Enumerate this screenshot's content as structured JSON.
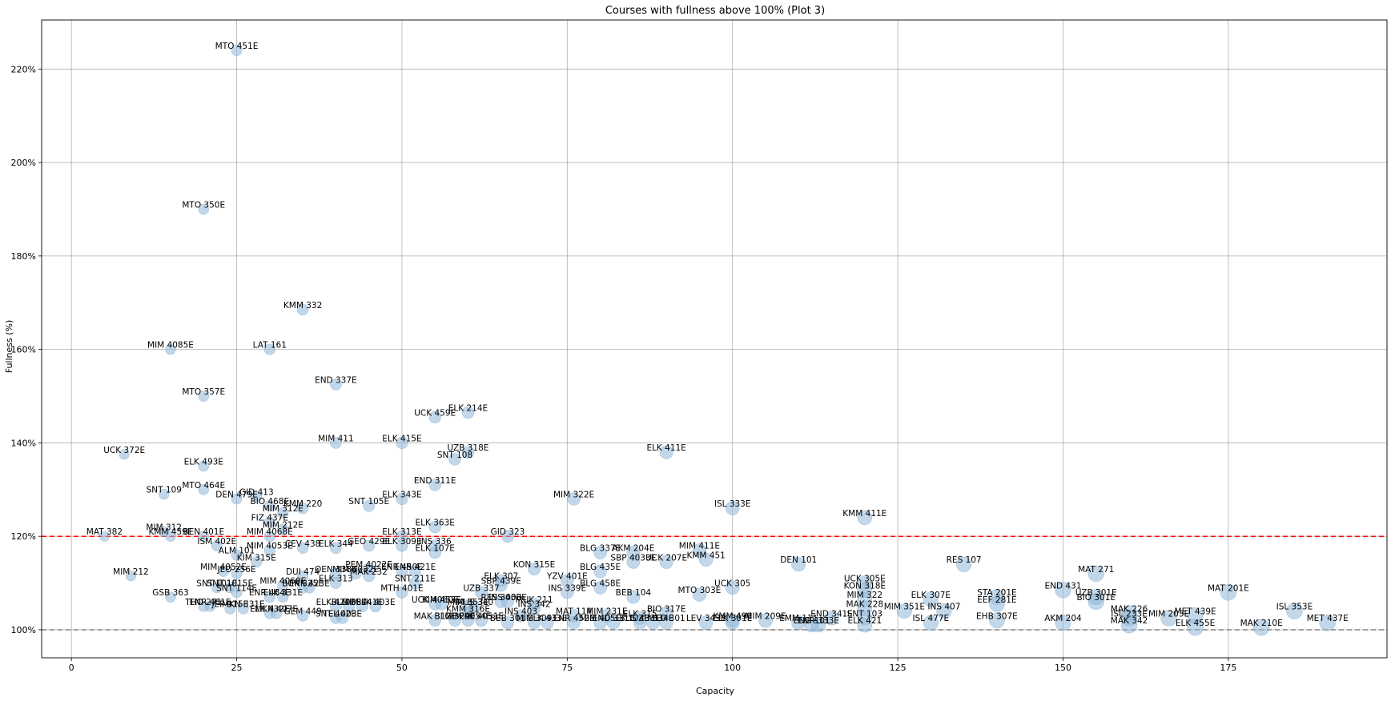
{
  "chart_data": {
    "type": "scatter",
    "title": "Courses with fullness above 100% (Plot 3)",
    "xlabel": "Capacity",
    "ylabel": "Fullness (%)",
    "xlim": [
      -4.5,
      199
    ],
    "ylim": [
      94,
      230.5
    ],
    "xticks": [
      0,
      25,
      50,
      75,
      100,
      125,
      150,
      175
    ],
    "yticks": [
      100,
      120,
      140,
      160,
      180,
      200,
      220
    ],
    "ytick_suffix": "%",
    "grid": true,
    "reference_lines": [
      {
        "y": 120,
        "color": "#ff0000",
        "style": "dashed"
      },
      {
        "y": 100,
        "color": "#808080",
        "style": "dashed"
      }
    ],
    "marker_color": "#8fb8d9",
    "points": [
      {
        "label": "MTO 451E",
        "x": 25,
        "y": 224
      },
      {
        "label": "MTO 350E",
        "x": 20,
        "y": 190
      },
      {
        "label": "KMM 332",
        "x": 35,
        "y": 168.5
      },
      {
        "label": "MIM 4085E",
        "x": 15,
        "y": 160
      },
      {
        "label": "LAT 161",
        "x": 30,
        "y": 160
      },
      {
        "label": "END 337E",
        "x": 40,
        "y": 152.5
      },
      {
        "label": "MTO 357E",
        "x": 20,
        "y": 150
      },
      {
        "label": "UCK 459E",
        "x": 55,
        "y": 145.5
      },
      {
        "label": "ELK 214E",
        "x": 60,
        "y": 146.5
      },
      {
        "label": "MIM 411",
        "x": 40,
        "y": 140
      },
      {
        "label": "ELK 415E",
        "x": 50,
        "y": 140
      },
      {
        "label": "UZB 318E",
        "x": 60,
        "y": 138
      },
      {
        "label": "SNT 108",
        "x": 58,
        "y": 136.5
      },
      {
        "label": "ELK 411E",
        "x": 90,
        "y": 138
      },
      {
        "label": "UCK 372E",
        "x": 8,
        "y": 137.5
      },
      {
        "label": "ELK 493E",
        "x": 20,
        "y": 135
      },
      {
        "label": "END 311E",
        "x": 55,
        "y": 131
      },
      {
        "label": "MTO 464E",
        "x": 20,
        "y": 130
      },
      {
        "label": "SNT 109",
        "x": 14,
        "y": 129
      },
      {
        "label": "DEN 479E",
        "x": 25,
        "y": 128
      },
      {
        "label": "GID 413",
        "x": 28,
        "y": 128.5
      },
      {
        "label": "ELK 343E",
        "x": 50,
        "y": 128
      },
      {
        "label": "MIM 322E",
        "x": 76,
        "y": 128
      },
      {
        "label": "BIO 468E",
        "x": 30,
        "y": 126.5
      },
      {
        "label": "SNT 105E",
        "x": 45,
        "y": 126.5
      },
      {
        "label": "KMM 220",
        "x": 35,
        "y": 126
      },
      {
        "label": "ISL 333E",
        "x": 100,
        "y": 126
      },
      {
        "label": "MIM 312E",
        "x": 32,
        "y": 125
      },
      {
        "label": "KMM 411E",
        "x": 120,
        "y": 124
      },
      {
        "label": "FIZ 437E",
        "x": 30,
        "y": 123
      },
      {
        "label": "ELK 363E",
        "x": 55,
        "y": 122
      },
      {
        "label": "MIM 212E",
        "x": 32,
        "y": 121.5
      },
      {
        "label": "MIM 312",
        "x": 14,
        "y": 121
      },
      {
        "label": "MAT 382",
        "x": 5,
        "y": 120
      },
      {
        "label": "KMM 459E",
        "x": 15,
        "y": 120
      },
      {
        "label": "BEN 401E",
        "x": 20,
        "y": 120
      },
      {
        "label": "MIM 4068E",
        "x": 30,
        "y": 120
      },
      {
        "label": "ELK 313E",
        "x": 50,
        "y": 120
      },
      {
        "label": "GID 323",
        "x": 66,
        "y": 120
      },
      {
        "label": "ISM 402E",
        "x": 22,
        "y": 118
      },
      {
        "label": "ELK 309E",
        "x": 50,
        "y": 118
      },
      {
        "label": "INS 336",
        "x": 55,
        "y": 118
      },
      {
        "label": "GEO 429E",
        "x": 45,
        "y": 118
      },
      {
        "label": "ELK 344",
        "x": 40,
        "y": 117.5
      },
      {
        "label": "CEV 438",
        "x": 35,
        "y": 117.5
      },
      {
        "label": "MIM 4053E",
        "x": 30,
        "y": 117
      },
      {
        "label": "ELK 107E",
        "x": 55,
        "y": 116.5
      },
      {
        "label": "ALM 101",
        "x": 25,
        "y": 116
      },
      {
        "label": "BLG 337E",
        "x": 80,
        "y": 116.5
      },
      {
        "label": "AKM 204E",
        "x": 85,
        "y": 116.5
      },
      {
        "label": "MIM 411E",
        "x": 95,
        "y": 117
      },
      {
        "label": "KIM 315E",
        "x": 28,
        "y": 114.5
      },
      {
        "label": "SBP 4033E",
        "x": 85,
        "y": 114.5
      },
      {
        "label": "UCK 207E",
        "x": 90,
        "y": 114.5
      },
      {
        "label": "KMM 451",
        "x": 96,
        "y": 115
      },
      {
        "label": "DEN 101",
        "x": 110,
        "y": 114
      },
      {
        "label": "RES 107",
        "x": 135,
        "y": 114
      },
      {
        "label": "PEM 4022E",
        "x": 45,
        "y": 113
      },
      {
        "label": "KON 315E",
        "x": 70,
        "y": 113
      },
      {
        "label": "BLG 435E",
        "x": 80,
        "y": 112.5
      },
      {
        "label": "MIM 4052E",
        "x": 23,
        "y": 112.5
      },
      {
        "label": "JEO 256E",
        "x": 25,
        "y": 112
      },
      {
        "label": "MIM 212",
        "x": 9,
        "y": 111.5
      },
      {
        "label": "DUI 474",
        "x": 35,
        "y": 111.5
      },
      {
        "label": "OEN 338E",
        "x": 40,
        "y": 112
      },
      {
        "label": "MIM 4032E",
        "x": 43,
        "y": 112
      },
      {
        "label": "MAK 232",
        "x": 45,
        "y": 111.5
      },
      {
        "label": "ENR 450E",
        "x": 50,
        "y": 112.5
      },
      {
        "label": "ENR 421E",
        "x": 52,
        "y": 112.5
      },
      {
        "label": "MAT 271",
        "x": 155,
        "y": 112
      },
      {
        "label": "ELK 307",
        "x": 65,
        "y": 110.5
      },
      {
        "label": "YZV 401E",
        "x": 75,
        "y": 110.5
      },
      {
        "label": "ELK 313",
        "x": 40,
        "y": 110
      },
      {
        "label": "SNT 211E",
        "x": 52,
        "y": 110
      },
      {
        "label": "SBP 439E",
        "x": 65,
        "y": 109.5
      },
      {
        "label": "SNT 101E",
        "x": 22,
        "y": 109
      },
      {
        "label": "SNT 1015E",
        "x": 24,
        "y": 109
      },
      {
        "label": "MIM 4060E",
        "x": 32,
        "y": 109.5
      },
      {
        "label": "BUK 325E",
        "x": 35,
        "y": 109
      },
      {
        "label": "ERK 423E",
        "x": 36,
        "y": 109
      },
      {
        "label": "UCK 305E",
        "x": 120,
        "y": 110
      },
      {
        "label": "UCK 305",
        "x": 100,
        "y": 109
      },
      {
        "label": "BLG 458E",
        "x": 80,
        "y": 109
      },
      {
        "label": "KON 318E",
        "x": 120,
        "y": 108.5
      },
      {
        "label": "END 431",
        "x": 150,
        "y": 108.5
      },
      {
        "label": "SNT 114E",
        "x": 25,
        "y": 108
      },
      {
        "label": "MTH 401E",
        "x": 50,
        "y": 108
      },
      {
        "label": "UZB 337",
        "x": 62,
        "y": 108
      },
      {
        "label": "INS 339E",
        "x": 75,
        "y": 108
      },
      {
        "label": "MAT 201E",
        "x": 175,
        "y": 108
      },
      {
        "label": "MTO 303E",
        "x": 95,
        "y": 107.5
      },
      {
        "label": "BEB 104",
        "x": 85,
        "y": 107
      },
      {
        "label": "GSB 363",
        "x": 15,
        "y": 107
      },
      {
        "label": "ENR 484E",
        "x": 30,
        "y": 107
      },
      {
        "label": "ELK 331E",
        "x": 32,
        "y": 107
      },
      {
        "label": "MIM 322",
        "x": 120,
        "y": 106.5
      },
      {
        "label": "STA 201E",
        "x": 140,
        "y": 107
      },
      {
        "label": "ELK 307E",
        "x": 130,
        "y": 106.5
      },
      {
        "label": "UZB 301E",
        "x": 155,
        "y": 107
      },
      {
        "label": "RES 303E",
        "x": 65,
        "y": 106
      },
      {
        "label": "INS 403E",
        "x": 66,
        "y": 106
      },
      {
        "label": "MUK 211",
        "x": 70,
        "y": 105.5
      },
      {
        "label": "UCK 4060E",
        "x": 55,
        "y": 105.5
      },
      {
        "label": "KIM 453E",
        "x": 56,
        "y": 105.5
      },
      {
        "label": "BIO 301E",
        "x": 155,
        "y": 106
      },
      {
        "label": "EEF 281E",
        "x": 140,
        "y": 105.5
      },
      {
        "label": "THO 271",
        "x": 20,
        "y": 105
      },
      {
        "label": "ENR 461E",
        "x": 21,
        "y": 105
      },
      {
        "label": "JEF 315E",
        "x": 24,
        "y": 104.5
      },
      {
        "label": "MKN 331E",
        "x": 26,
        "y": 104.5
      },
      {
        "label": "ELK 420E",
        "x": 40,
        "y": 105
      },
      {
        "label": "BLG 337",
        "x": 42,
        "y": 105
      },
      {
        "label": "MIM 441E",
        "x": 44,
        "y": 105
      },
      {
        "label": "ELK 403E",
        "x": 46,
        "y": 105
      },
      {
        "label": "MIM 353E",
        "x": 60,
        "y": 105
      },
      {
        "label": "MUS 340",
        "x": 61,
        "y": 105
      },
      {
        "label": "INS 342",
        "x": 70,
        "y": 104.5
      },
      {
        "label": "MAK 228",
        "x": 120,
        "y": 104.5
      },
      {
        "label": "INS 407",
        "x": 132,
        "y": 104
      },
      {
        "label": "MIM 351E",
        "x": 126,
        "y": 104
      },
      {
        "label": "ISL 353E",
        "x": 185,
        "y": 104
      },
      {
        "label": "GEM 449",
        "x": 35,
        "y": 103
      },
      {
        "label": "ELK 432E",
        "x": 30,
        "y": 103.5
      },
      {
        "label": "MKN 407E",
        "x": 31,
        "y": 103.5
      },
      {
        "label": "BIO 317E",
        "x": 90,
        "y": 103.5
      },
      {
        "label": "MAK 226",
        "x": 160,
        "y": 103.5
      },
      {
        "label": "KMM 316E",
        "x": 60,
        "y": 103.5
      },
      {
        "label": "MAT 114",
        "x": 76,
        "y": 103
      },
      {
        "label": "INS 403",
        "x": 68,
        "y": 103
      },
      {
        "label": "MIM 231E",
        "x": 81,
        "y": 103
      },
      {
        "label": "ELK 315",
        "x": 86,
        "y": 102.5
      },
      {
        "label": "MET 439E",
        "x": 170,
        "y": 103
      },
      {
        "label": "MIM 203E",
        "x": 166,
        "y": 102.5
      },
      {
        "label": "ISL 233E",
        "x": 160,
        "y": 102.5
      },
      {
        "label": "END 341E",
        "x": 115,
        "y": 102.5
      },
      {
        "label": "SNT 103",
        "x": 120,
        "y": 102.5
      },
      {
        "label": "EHB 307E",
        "x": 140,
        "y": 102
      },
      {
        "label": "KMM 490",
        "x": 100,
        "y": 102
      },
      {
        "label": "MIM 209E",
        "x": 105,
        "y": 102
      },
      {
        "label": "EMM 111",
        "x": 110,
        "y": 101.5
      },
      {
        "label": "SNT 402E",
        "x": 40,
        "y": 102.5
      },
      {
        "label": "TEL 403E",
        "x": 41,
        "y": 102.5
      },
      {
        "label": "MAK 312E",
        "x": 55,
        "y": 102
      },
      {
        "label": "BLG 329E",
        "x": 58,
        "y": 102
      },
      {
        "label": "MIM 4054E",
        "x": 60,
        "y": 102
      },
      {
        "label": "ELK 4051E",
        "x": 62,
        "y": 102
      },
      {
        "label": "BEB 301",
        "x": 66,
        "y": 101.5
      },
      {
        "label": "MIM 309",
        "x": 70,
        "y": 101.5
      },
      {
        "label": "ELK 433E",
        "x": 72,
        "y": 101.5
      },
      {
        "label": "ENR 452E",
        "x": 76,
        "y": 101.5
      },
      {
        "label": "MIM 405E",
        "x": 80,
        "y": 101.5
      },
      {
        "label": "END 331E",
        "x": 82,
        "y": 101.5
      },
      {
        "label": "BLG 433E",
        "x": 86,
        "y": 101.5
      },
      {
        "label": "UZB 334E",
        "x": 88,
        "y": 101.5
      },
      {
        "label": "MTO 301",
        "x": 90,
        "y": 101.5
      },
      {
        "label": "ELK 301E",
        "x": 100,
        "y": 101.5
      },
      {
        "label": "LEV 343E",
        "x": 96,
        "y": 101.5
      },
      {
        "label": "ISL 477E",
        "x": 130,
        "y": 101.5
      },
      {
        "label": "AKM 204",
        "x": 150,
        "y": 101.5
      },
      {
        "label": "MAK 342",
        "x": 160,
        "y": 101
      },
      {
        "label": "MET 437E",
        "x": 190,
        "y": 101.5
      },
      {
        "label": "ELK 421",
        "x": 120,
        "y": 101
      },
      {
        "label": "END 101",
        "x": 112,
        "y": 101
      },
      {
        "label": "ENR 333E",
        "x": 113,
        "y": 101
      },
      {
        "label": "ELK 455E",
        "x": 170,
        "y": 100.5
      },
      {
        "label": "MAK 210E",
        "x": 180,
        "y": 100.5
      }
    ]
  }
}
